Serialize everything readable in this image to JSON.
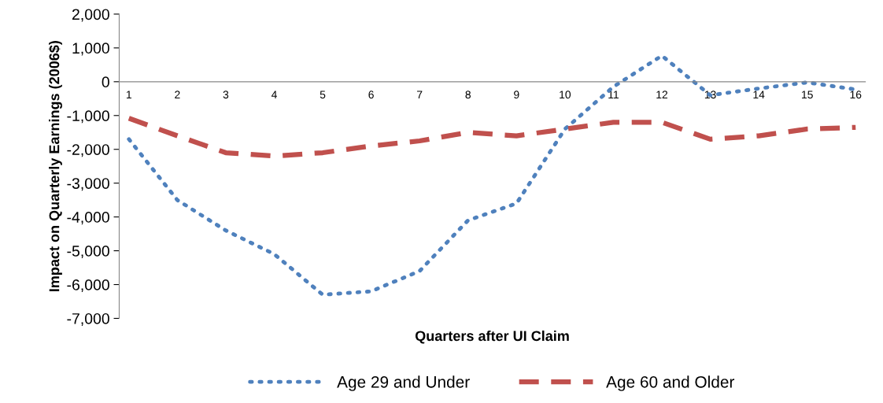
{
  "chart_data": {
    "type": "line",
    "xlabel": "Quarters after UI Claim",
    "ylabel": "Impact on Quarterly Earnings (2006$)",
    "categories": [
      "1",
      "2",
      "3",
      "4",
      "5",
      "6",
      "7",
      "8",
      "9",
      "10",
      "11",
      "12",
      "13",
      "14",
      "15",
      "16"
    ],
    "series": [
      {
        "name": "Age 29 and Under",
        "color": "#4f81bd",
        "line_style": "dotted",
        "values": [
          -1700,
          -3500,
          -4400,
          -5100,
          -6300,
          -6200,
          -5600,
          -4100,
          -3600,
          -1400,
          -150,
          770,
          -400,
          -200,
          -20,
          -230
        ]
      },
      {
        "name": "Age 60 and Older",
        "color": "#c0504d",
        "line_style": "dashed",
        "values": [
          -1080,
          -1600,
          -2100,
          -2200,
          -2100,
          -1900,
          -1750,
          -1500,
          -1600,
          -1400,
          -1200,
          -1200,
          -1700,
          -1600,
          -1400,
          -1350
        ]
      }
    ],
    "ylim": [
      -7000,
      2000
    ],
    "yticks": [
      {
        "value": 2000,
        "label": "2,000"
      },
      {
        "value": 1000,
        "label": "1,000"
      },
      0,
      {
        "value": -1000,
        "label": "-1,000"
      },
      {
        "value": -2000,
        "label": "-2,000"
      },
      {
        "value": -3000,
        "label": "-3,000"
      },
      {
        "value": -4000,
        "label": "-4,000"
      },
      {
        "value": -5000,
        "label": "-5,000"
      },
      {
        "value": -6000,
        "label": "-6,000"
      },
      {
        "value": -7000,
        "label": "-7,000"
      }
    ],
    "grid": false,
    "legend": "bottom"
  }
}
